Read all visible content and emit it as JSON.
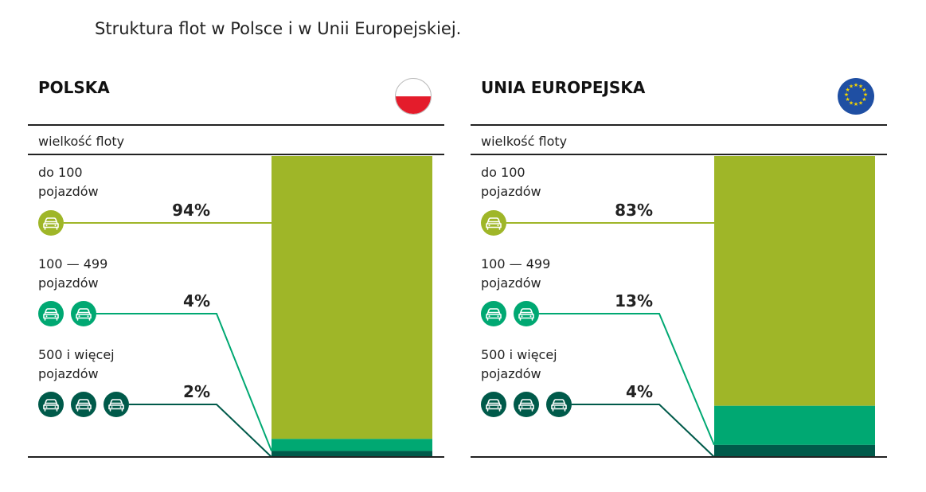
{
  "title": "Struktura flot w Polsce i w Unii Europejskiej.",
  "header_label": "wielkość floty",
  "colors": {
    "small": "#9fb628",
    "medium": "#00a872",
    "large": "#005a4a"
  },
  "panels": [
    {
      "name": "POLSKA",
      "flag": "poland-flag-icon",
      "categories": [
        {
          "line1": "do 100",
          "line2": "pojazdów",
          "pct_label": "94%",
          "icons": 1
        },
        {
          "line1": "100 — 499",
          "line2": "pojazdów",
          "pct_label": "4%",
          "icons": 2
        },
        {
          "line1": "500 i więcej",
          "line2": "pojazdów",
          "pct_label": "2%",
          "icons": 3
        }
      ]
    },
    {
      "name": "UNIA EUROPEJSKA",
      "flag": "eu-flag-icon",
      "categories": [
        {
          "line1": "do 100",
          "line2": "pojazdów",
          "pct_label": "83%",
          "icons": 1
        },
        {
          "line1": "100 — 499",
          "line2": "pojazdów",
          "pct_label": "13%",
          "icons": 2
        },
        {
          "line1": "500 i więcej",
          "line2": "pojazdów",
          "pct_label": "4%",
          "icons": 3
        }
      ]
    }
  ],
  "chart_data": [
    {
      "type": "bar",
      "title": "POLSKA",
      "categories": [
        "do 100 pojazdów",
        "100 — 499 pojazdów",
        "500 i więcej pojazdów"
      ],
      "values": [
        94,
        4,
        2
      ],
      "ylim": [
        0,
        100
      ]
    },
    {
      "type": "bar",
      "title": "UNIA EUROPEJSKA",
      "categories": [
        "do 100 pojazdów",
        "100 — 499 pojazdów",
        "500 i więcej pojazdów"
      ],
      "values": [
        83,
        13,
        4
      ],
      "ylim": [
        0,
        100
      ]
    }
  ]
}
